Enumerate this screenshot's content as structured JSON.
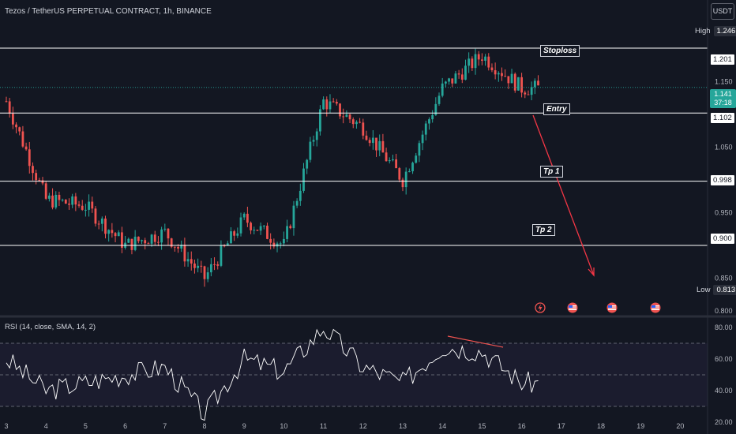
{
  "header": {
    "title": "Tezos / TetherUS PERPETUAL CONTRACT, 1h, BINANCE",
    "currency": "USDT"
  },
  "price_panel": {
    "high_label": "High",
    "high_value": "1.246",
    "low_label": "Low",
    "low_value": "0.813",
    "current_price": "1.141",
    "countdown": "37:18",
    "level_tags": [
      "1.201",
      "1.102",
      "0.998",
      "0.900"
    ],
    "axis_ticks": [
      "1.150",
      "1.050",
      "0.950",
      "0.850",
      "0.800"
    ]
  },
  "annotations": {
    "stoploss": "Stoploss",
    "entry": "Entry",
    "tp1": "Tp 1",
    "tp2": "Tp 2"
  },
  "rsi_panel": {
    "title": "RSI (14, close, SMA, 14, 2)",
    "ticks": [
      "80.00",
      "60.00",
      "40.00",
      "20.00"
    ]
  },
  "x_axis_labels": [
    "3",
    "4",
    "5",
    "6",
    "7",
    "8",
    "9",
    "10",
    "11",
    "12",
    "13",
    "14",
    "15",
    "16",
    "17",
    "18",
    "19",
    "20"
  ],
  "colors": {
    "background": "#131722",
    "bull": "#26a69a",
    "bear": "#ef5350",
    "level_line": "#ffffff",
    "arrow": "#f23645",
    "rsi_line": "#ffffff",
    "rsi_band": "#7e57c2"
  },
  "chart_data": {
    "type": "candlestick",
    "title": "Tezos / TetherUS PERPETUAL CONTRACT, 1h, BINANCE",
    "interval": "1h",
    "y_range": [
      0.8,
      1.26
    ],
    "horizontal_levels": [
      {
        "name": "Stoploss",
        "value": 1.201
      },
      {
        "name": "Entry",
        "value": 1.102
      },
      {
        "name": "Tp 1",
        "value": 0.998
      },
      {
        "name": "Tp 2",
        "value": 0.9
      }
    ],
    "key_closes": {
      "x": [
        "3",
        "4",
        "5",
        "6",
        "7",
        "8",
        "9",
        "10",
        "11",
        "12",
        "13",
        "14",
        "15",
        "16"
      ],
      "close": [
        1.12,
        0.97,
        0.96,
        0.9,
        0.92,
        0.85,
        0.94,
        0.9,
        1.12,
        1.08,
        1.0,
        1.14,
        1.19,
        1.14
      ]
    },
    "high": 1.246,
    "low": 0.813,
    "last": 1.141,
    "projection": {
      "from": 1.102,
      "to": 0.853,
      "direction": "down"
    },
    "rsi": {
      "name": "RSI (14, close, SMA, 14, 2)",
      "y_range": [
        15,
        85
      ],
      "levels": [
        70,
        50,
        30
      ],
      "key_values": {
        "x": [
          "3",
          "4",
          "5",
          "6",
          "7",
          "8",
          "9",
          "10",
          "11",
          "12",
          "13",
          "14",
          "15",
          "16"
        ],
        "rsi": [
          60,
          40,
          45,
          50,
          55,
          25,
          60,
          52,
          80,
          55,
          45,
          68,
          65,
          45
        ]
      }
    }
  }
}
